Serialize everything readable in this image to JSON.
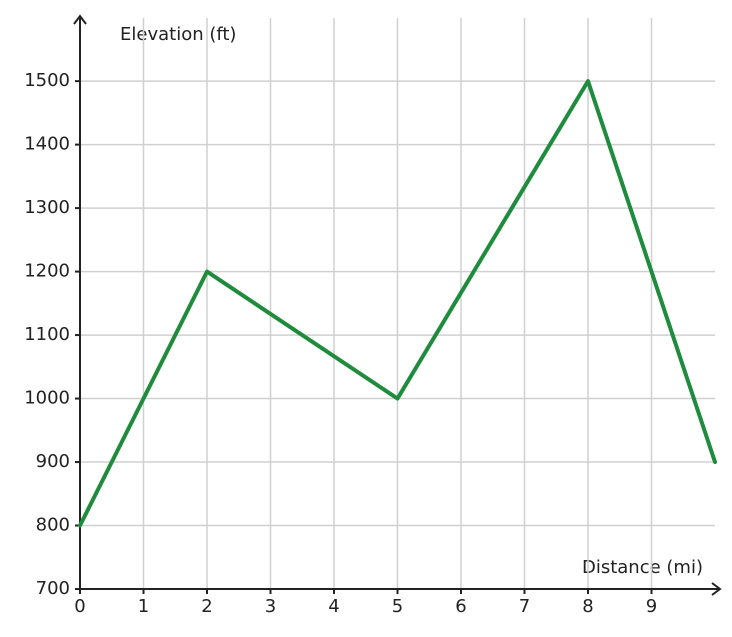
{
  "chart_data": {
    "type": "line",
    "x_label": "Distance (mi)",
    "y_label": "Elevation (ft)",
    "series": [
      {
        "name": "Elevation",
        "color": "#1e8c3c",
        "x": [
          0,
          2,
          5,
          8,
          10
        ],
        "values": [
          800,
          1200,
          1000,
          1500,
          900
        ]
      }
    ],
    "xlim": [
      0,
      10
    ],
    "xticks": [
      0,
      1,
      2,
      3,
      4,
      5,
      6,
      7,
      8,
      9
    ],
    "ylim": [
      700,
      1590
    ],
    "yticks": [
      700,
      800,
      900,
      1000,
      1100,
      1200,
      1300,
      1400,
      1500
    ],
    "grid": true
  }
}
